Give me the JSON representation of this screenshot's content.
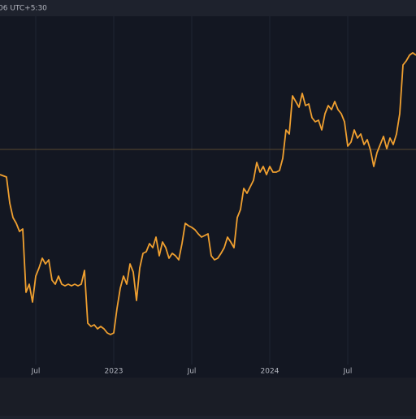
{
  "header": {
    "time_label": "06 UTC+5:30"
  },
  "chart_data": {
    "type": "line",
    "x": [
      3.25,
      3.75,
      4,
      4.25,
      4.5,
      4.75,
      5,
      5.25,
      5.5,
      5.75,
      6,
      6.25,
      6.5,
      6.75,
      7,
      7.25,
      7.5,
      7.75,
      8,
      8.25,
      8.5,
      8.75,
      9,
      9.25,
      9.5,
      9.75,
      10,
      10.25,
      10.5,
      10.75,
      11,
      11.25,
      11.5,
      11.75,
      12,
      12.25,
      12.5,
      12.75,
      13,
      13.25,
      13.5,
      13.75,
      14,
      14.25,
      14.5,
      14.75,
      15,
      15.25,
      15.5,
      15.75,
      16,
      16.25,
      16.5,
      16.75,
      17,
      17.25,
      17.5,
      17.75,
      18,
      18.25,
      18.5,
      18.75,
      19,
      19.25,
      19.5,
      19.75,
      20,
      20.25,
      20.5,
      20.75,
      21,
      21.25,
      21.5,
      21.75,
      22,
      22.25,
      22.5,
      22.75,
      23,
      23.25,
      23.5,
      23.75,
      24,
      24.25,
      24.5,
      24.75,
      25,
      25.25,
      25.5,
      25.75,
      26,
      26.25,
      26.5,
      26.75,
      27,
      27.25,
      27.5,
      27.75,
      28,
      28.25,
      28.5,
      28.75,
      29,
      29.25,
      29.5,
      29.75,
      30,
      30.25,
      30.5,
      30.75,
      31,
      31.25,
      31.5,
      31.75,
      32,
      32.25,
      32.5,
      32.75,
      33,
      33.25,
      33.5,
      33.75,
      34,
      34.25,
      34.5,
      34.75,
      35,
      35.25
    ],
    "series": [
      {
        "color": "#f0a030",
        "values": [
          250,
          247,
          215,
          197,
          190,
          180,
          183,
          105,
          115,
          93,
          125,
          135,
          147,
          140,
          145,
          120,
          115,
          125,
          115,
          113,
          115,
          113,
          115,
          113,
          115,
          132,
          67,
          63,
          65,
          60,
          63,
          60,
          55,
          53,
          55,
          85,
          110,
          125,
          115,
          140,
          130,
          95,
          135,
          153,
          155,
          165,
          160,
          173,
          150,
          167,
          160,
          147,
          153,
          150,
          145,
          165,
          190,
          187,
          185,
          182,
          177,
          173,
          175,
          177,
          150,
          145,
          147,
          153,
          160,
          173,
          167,
          160,
          197,
          207,
          233,
          227,
          235,
          243,
          265,
          253,
          260,
          250,
          260,
          253,
          253,
          255,
          270,
          305,
          300,
          347,
          340,
          333,
          350,
          335,
          337,
          320,
          315,
          317,
          305,
          325,
          335,
          330,
          340,
          330,
          325,
          315,
          285,
          290,
          305,
          295,
          300,
          287,
          293,
          280,
          260,
          277,
          287,
          297,
          282,
          295,
          287,
          300,
          325,
          385,
          390,
          397,
          400,
          397
        ]
      }
    ],
    "price_line": 281,
    "xlim": [
      3.25,
      35.25
    ],
    "ylim": [
      0,
      445
    ],
    "xticks": [
      {
        "value": 6,
        "label": "Jul"
      },
      {
        "value": 12,
        "label": "2023"
      },
      {
        "value": 18,
        "label": "Jul"
      },
      {
        "value": 24,
        "label": "2024"
      },
      {
        "value": 30,
        "label": "Jul"
      }
    ],
    "grid": true
  }
}
